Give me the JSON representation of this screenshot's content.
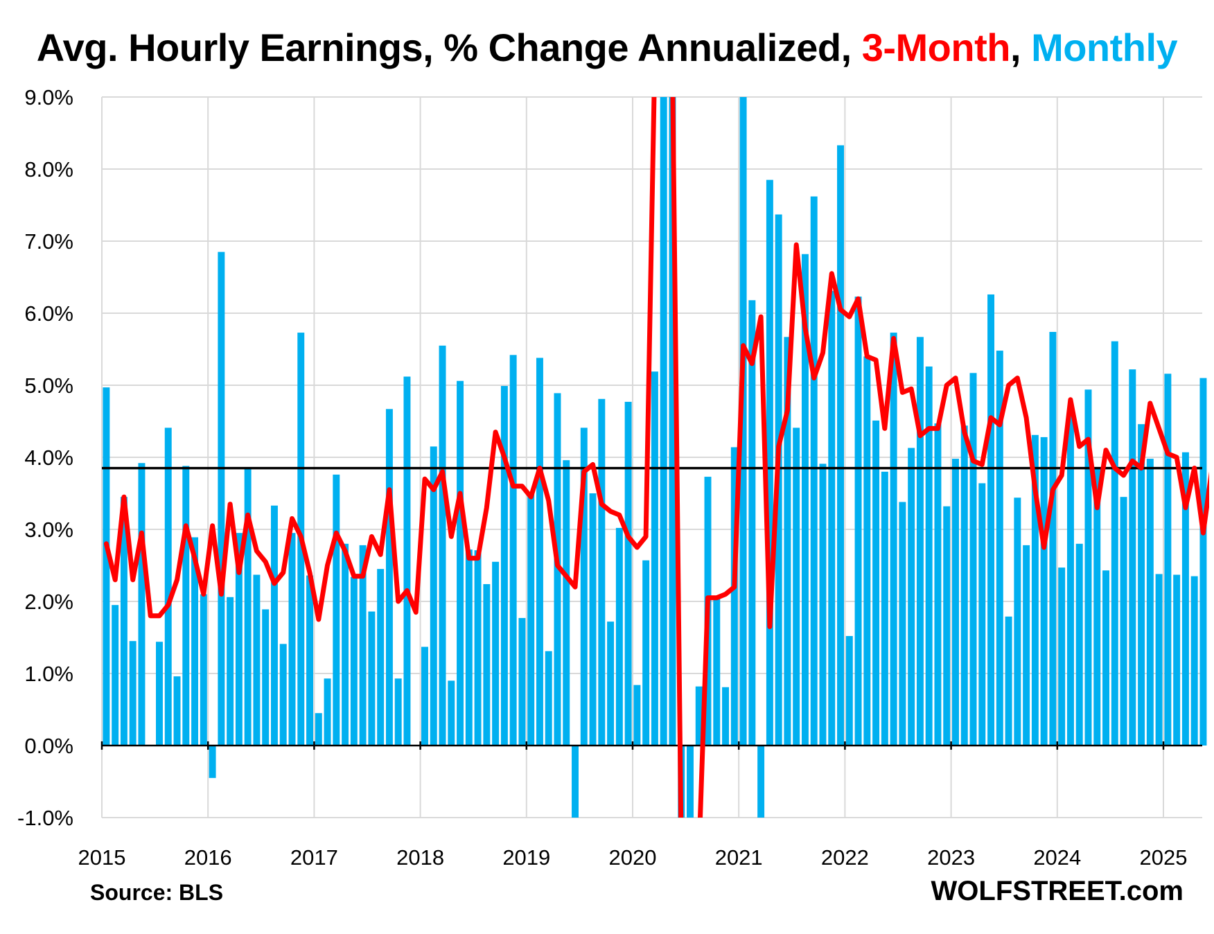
{
  "chart_data": {
    "type": "bar",
    "title_parts": [
      {
        "text": "Avg. Hourly Earnings, % Change Annualized, ",
        "color": "#000000"
      },
      {
        "text": "3-Month",
        "color": "#FF0000"
      },
      {
        "text": ", ",
        "color": "#000000"
      },
      {
        "text": "Monthly",
        "color": "#00B0F0"
      }
    ],
    "source": "Source: BLS",
    "brand": "WOLFSTREET.com",
    "ylim": [
      -1,
      9
    ],
    "y_ticks": [
      "-1.0%",
      "0.0%",
      "1.0%",
      "2.0%",
      "3.0%",
      "4.0%",
      "5.0%",
      "6.0%",
      "7.0%",
      "8.0%",
      "9.0%"
    ],
    "x_ticks": [
      "2015",
      "2016",
      "2017",
      "2018",
      "2019",
      "2020",
      "2021",
      "2022",
      "2023",
      "2024",
      "2025"
    ],
    "grid": true,
    "reference_line": {
      "value": 3.85,
      "color": "#000000"
    },
    "start": "2015-01",
    "series": [
      {
        "name": "Monthly",
        "type": "bar",
        "color": "#00B0F0",
        "values": [
          4.97,
          1.95,
          3.45,
          1.45,
          3.92,
          0.0,
          1.44,
          4.41,
          0.96,
          3.88,
          2.89,
          2.1,
          -0.45,
          6.85,
          2.06,
          2.95,
          3.86,
          2.37,
          1.89,
          3.33,
          1.41,
          2.95,
          5.73,
          2.36,
          0.45,
          0.93,
          3.76,
          2.8,
          2.34,
          2.78,
          1.86,
          2.45,
          4.67,
          0.93,
          5.12,
          0.0,
          1.37,
          4.15,
          5.55,
          0.9,
          5.06,
          2.72,
          2.71,
          2.24,
          2.55,
          4.99,
          5.42,
          1.77,
          3.5,
          5.38,
          1.31,
          4.89,
          3.96,
          -1.0,
          4.41,
          3.5,
          4.81,
          1.72,
          3.02,
          4.77,
          0.84,
          2.57,
          5.19,
          9.0,
          9.0,
          -1.0,
          -1.0,
          0.82,
          3.73,
          2.04,
          0.81,
          4.14,
          9.0,
          6.18,
          -1.0,
          7.85,
          7.37,
          5.67,
          4.41,
          6.82,
          7.62,
          3.91,
          6.31,
          8.33,
          1.52,
          6.23,
          5.4,
          4.51,
          3.8,
          5.73,
          3.38,
          4.13,
          5.67,
          5.26,
          4.47,
          3.32,
          3.98,
          4.44,
          5.17,
          3.64,
          6.26,
          5.48,
          1.79,
          3.44,
          2.78,
          4.31,
          4.28,
          5.74,
          2.47,
          4.61,
          2.8,
          4.94,
          3.86,
          2.43,
          5.61,
          3.45,
          5.22,
          4.46,
          3.98,
          2.38,
          5.16,
          2.37,
          4.07,
          2.35,
          5.1
        ]
      },
      {
        "name": "3-Month",
        "type": "line",
        "color": "#FF0000",
        "values": [
          2.8,
          2.3,
          3.45,
          2.3,
          2.95,
          1.8,
          1.8,
          1.95,
          2.3,
          3.05,
          2.6,
          2.1,
          3.05,
          2.1,
          3.35,
          2.4,
          3.2,
          2.7,
          2.55,
          2.25,
          2.4,
          3.15,
          2.9,
          2.4,
          1.75,
          2.5,
          2.95,
          2.7,
          2.35,
          2.35,
          2.9,
          2.65,
          3.55,
          2.0,
          2.15,
          1.85,
          3.7,
          3.55,
          3.8,
          2.9,
          3.5,
          2.6,
          2.6,
          3.3,
          4.35,
          4.0,
          3.6,
          3.6,
          3.45,
          3.85,
          3.4,
          2.5,
          2.35,
          2.2,
          3.8,
          3.9,
          3.35,
          3.25,
          3.2,
          2.9,
          2.75,
          2.9,
          9.5,
          9.5,
          9.5,
          -1.5,
          -1.5,
          -1.5,
          2.05,
          2.05,
          2.1,
          2.2,
          5.55,
          5.3,
          5.95,
          1.65,
          4.15,
          4.65,
          6.95,
          5.8,
          5.1,
          5.45,
          6.55,
          6.05,
          5.95,
          6.2,
          5.4,
          5.35,
          4.4,
          5.65,
          4.9,
          4.95,
          4.3,
          4.4,
          4.4,
          5.0,
          5.1,
          4.35,
          3.95,
          3.9,
          4.55,
          4.45,
          5.0,
          5.1,
          4.55,
          3.55,
          2.75,
          3.55,
          3.75,
          4.8,
          4.15,
          4.25,
          3.3,
          4.1,
          3.85,
          3.75,
          3.95,
          3.85,
          4.75,
          4.4,
          4.05,
          4.0,
          3.3,
          3.85,
          2.95,
          3.85
        ]
      }
    ]
  }
}
